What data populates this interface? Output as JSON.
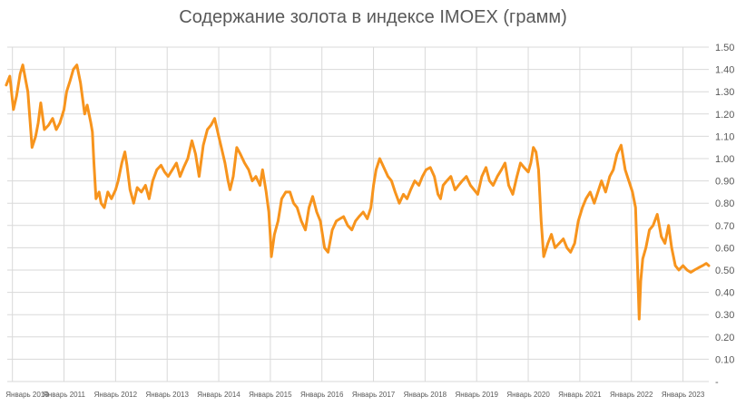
{
  "chart_data": {
    "type": "line",
    "title": "Содержание золота в индексе IMOEX (грамм)",
    "xlabel": "",
    "ylabel": "",
    "ylim": [
      0,
      1.5
    ],
    "y_ticks": [
      "-",
      "0.10",
      "0.20",
      "0.30",
      "0.40",
      "0.50",
      "0.60",
      "0.70",
      "0.80",
      "0.90",
      "1.00",
      "1.10",
      "1.20",
      "1.30",
      "1.40",
      "1.50"
    ],
    "x_ticks": [
      "Январь 2010",
      "Январь 2011",
      "Январь 2012",
      "Январь 2013",
      "Январь 2014",
      "Январь 2015",
      "Январь 2016",
      "Январь 2017",
      "Январь 2018",
      "Январь 2019",
      "Январь 2020",
      "Январь 2021",
      "Январь 2022",
      "Январь 2023"
    ],
    "grid": true,
    "legend": "none",
    "series": [
      {
        "color": "#F7941D",
        "x": [
          2009.88,
          2009.95,
          2010.02,
          2010.08,
          2010.15,
          2010.2,
          2010.3,
          2010.38,
          2010.45,
          2010.5,
          2010.55,
          2010.62,
          2010.7,
          2010.78,
          2010.85,
          2010.92,
          2011.0,
          2011.05,
          2011.12,
          2011.18,
          2011.25,
          2011.32,
          2011.4,
          2011.45,
          2011.52,
          2011.55,
          2011.58,
          2011.62,
          2011.68,
          2011.72,
          2011.78,
          2011.85,
          2011.92,
          2012.0,
          2012.05,
          2012.12,
          2012.18,
          2012.22,
          2012.28,
          2012.35,
          2012.42,
          2012.5,
          2012.58,
          2012.65,
          2012.72,
          2012.8,
          2012.88,
          2012.95,
          2013.02,
          2013.1,
          2013.18,
          2013.25,
          2013.32,
          2013.4,
          2013.48,
          2013.55,
          2013.62,
          2013.7,
          2013.78,
          2013.85,
          2013.92,
          2014.0,
          2014.05,
          2014.12,
          2014.18,
          2014.22,
          2014.28,
          2014.35,
          2014.42,
          2014.5,
          2014.58,
          2014.65,
          2014.72,
          2014.8,
          2014.85,
          2014.92,
          2014.97,
          2015.0,
          2015.02,
          2015.08,
          2015.15,
          2015.22,
          2015.3,
          2015.38,
          2015.45,
          2015.52,
          2015.6,
          2015.68,
          2015.75,
          2015.82,
          2015.9,
          2015.97,
          2016.05,
          2016.12,
          2016.2,
          2016.28,
          2016.35,
          2016.42,
          2016.5,
          2016.58,
          2016.65,
          2016.72,
          2016.8,
          2016.88,
          2016.95,
          2017.0,
          2017.05,
          2017.12,
          2017.2,
          2017.28,
          2017.35,
          2017.42,
          2017.5,
          2017.58,
          2017.65,
          2017.72,
          2017.8,
          2017.88,
          2017.95,
          2018.02,
          2018.1,
          2018.18,
          2018.25,
          2018.3,
          2018.35,
          2018.42,
          2018.5,
          2018.58,
          2018.65,
          2018.72,
          2018.8,
          2018.88,
          2018.95,
          2019.02,
          2019.1,
          2019.18,
          2019.25,
          2019.32,
          2019.4,
          2019.48,
          2019.55,
          2019.62,
          2019.7,
          2019.78,
          2019.85,
          2019.92,
          2020.0,
          2020.05,
          2020.1,
          2020.15,
          2020.2,
          2020.25,
          2020.3,
          2020.38,
          2020.45,
          2020.52,
          2020.6,
          2020.68,
          2020.75,
          2020.82,
          2020.9,
          2020.97,
          2021.05,
          2021.12,
          2021.2,
          2021.28,
          2021.35,
          2021.42,
          2021.5,
          2021.58,
          2021.65,
          2021.72,
          2021.8,
          2021.88,
          2021.95,
          2022.02,
          2022.08,
          2022.12,
          2022.15,
          2022.18,
          2022.22,
          2022.28,
          2022.35,
          2022.42,
          2022.5,
          2022.58,
          2022.65,
          2022.72,
          2022.78,
          2022.85,
          2022.92,
          2023.0,
          2023.08,
          2023.15,
          2023.22,
          2023.3,
          2023.38,
          2023.45,
          2023.5
        ],
        "values": [
          1.33,
          1.37,
          1.22,
          1.28,
          1.38,
          1.42,
          1.3,
          1.05,
          1.1,
          1.16,
          1.25,
          1.13,
          1.15,
          1.18,
          1.13,
          1.16,
          1.22,
          1.3,
          1.35,
          1.4,
          1.42,
          1.34,
          1.2,
          1.24,
          1.16,
          1.12,
          0.98,
          0.82,
          0.85,
          0.8,
          0.78,
          0.85,
          0.82,
          0.86,
          0.9,
          0.98,
          1.03,
          0.97,
          0.86,
          0.8,
          0.87,
          0.85,
          0.88,
          0.82,
          0.9,
          0.95,
          0.97,
          0.94,
          0.92,
          0.95,
          0.98,
          0.92,
          0.96,
          1.0,
          1.08,
          1.02,
          0.92,
          1.06,
          1.13,
          1.15,
          1.18,
          1.1,
          1.05,
          0.98,
          0.9,
          0.86,
          0.92,
          1.05,
          1.02,
          0.98,
          0.95,
          0.9,
          0.92,
          0.88,
          0.95,
          0.85,
          0.76,
          0.65,
          0.56,
          0.66,
          0.72,
          0.82,
          0.85,
          0.85,
          0.8,
          0.78,
          0.72,
          0.68,
          0.78,
          0.83,
          0.76,
          0.72,
          0.6,
          0.58,
          0.68,
          0.72,
          0.73,
          0.74,
          0.7,
          0.68,
          0.72,
          0.74,
          0.76,
          0.73,
          0.78,
          0.88,
          0.95,
          1.0,
          0.96,
          0.92,
          0.9,
          0.85,
          0.8,
          0.84,
          0.82,
          0.86,
          0.9,
          0.88,
          0.92,
          0.95,
          0.96,
          0.92,
          0.84,
          0.82,
          0.88,
          0.9,
          0.92,
          0.86,
          0.88,
          0.9,
          0.92,
          0.88,
          0.86,
          0.84,
          0.92,
          0.96,
          0.9,
          0.88,
          0.92,
          0.95,
          0.98,
          0.88,
          0.84,
          0.92,
          0.98,
          0.96,
          0.94,
          0.98,
          1.05,
          1.03,
          0.95,
          0.72,
          0.56,
          0.62,
          0.66,
          0.6,
          0.62,
          0.64,
          0.6,
          0.58,
          0.62,
          0.72,
          0.78,
          0.82,
          0.85,
          0.8,
          0.85,
          0.9,
          0.85,
          0.92,
          0.95,
          1.02,
          1.06,
          0.95,
          0.9,
          0.85,
          0.78,
          0.5,
          0.28,
          0.45,
          0.55,
          0.6,
          0.68,
          0.7,
          0.75,
          0.65,
          0.62,
          0.7,
          0.6,
          0.52,
          0.5,
          0.52,
          0.5,
          0.49,
          0.5,
          0.51,
          0.52,
          0.53,
          0.52
        ]
      }
    ]
  }
}
